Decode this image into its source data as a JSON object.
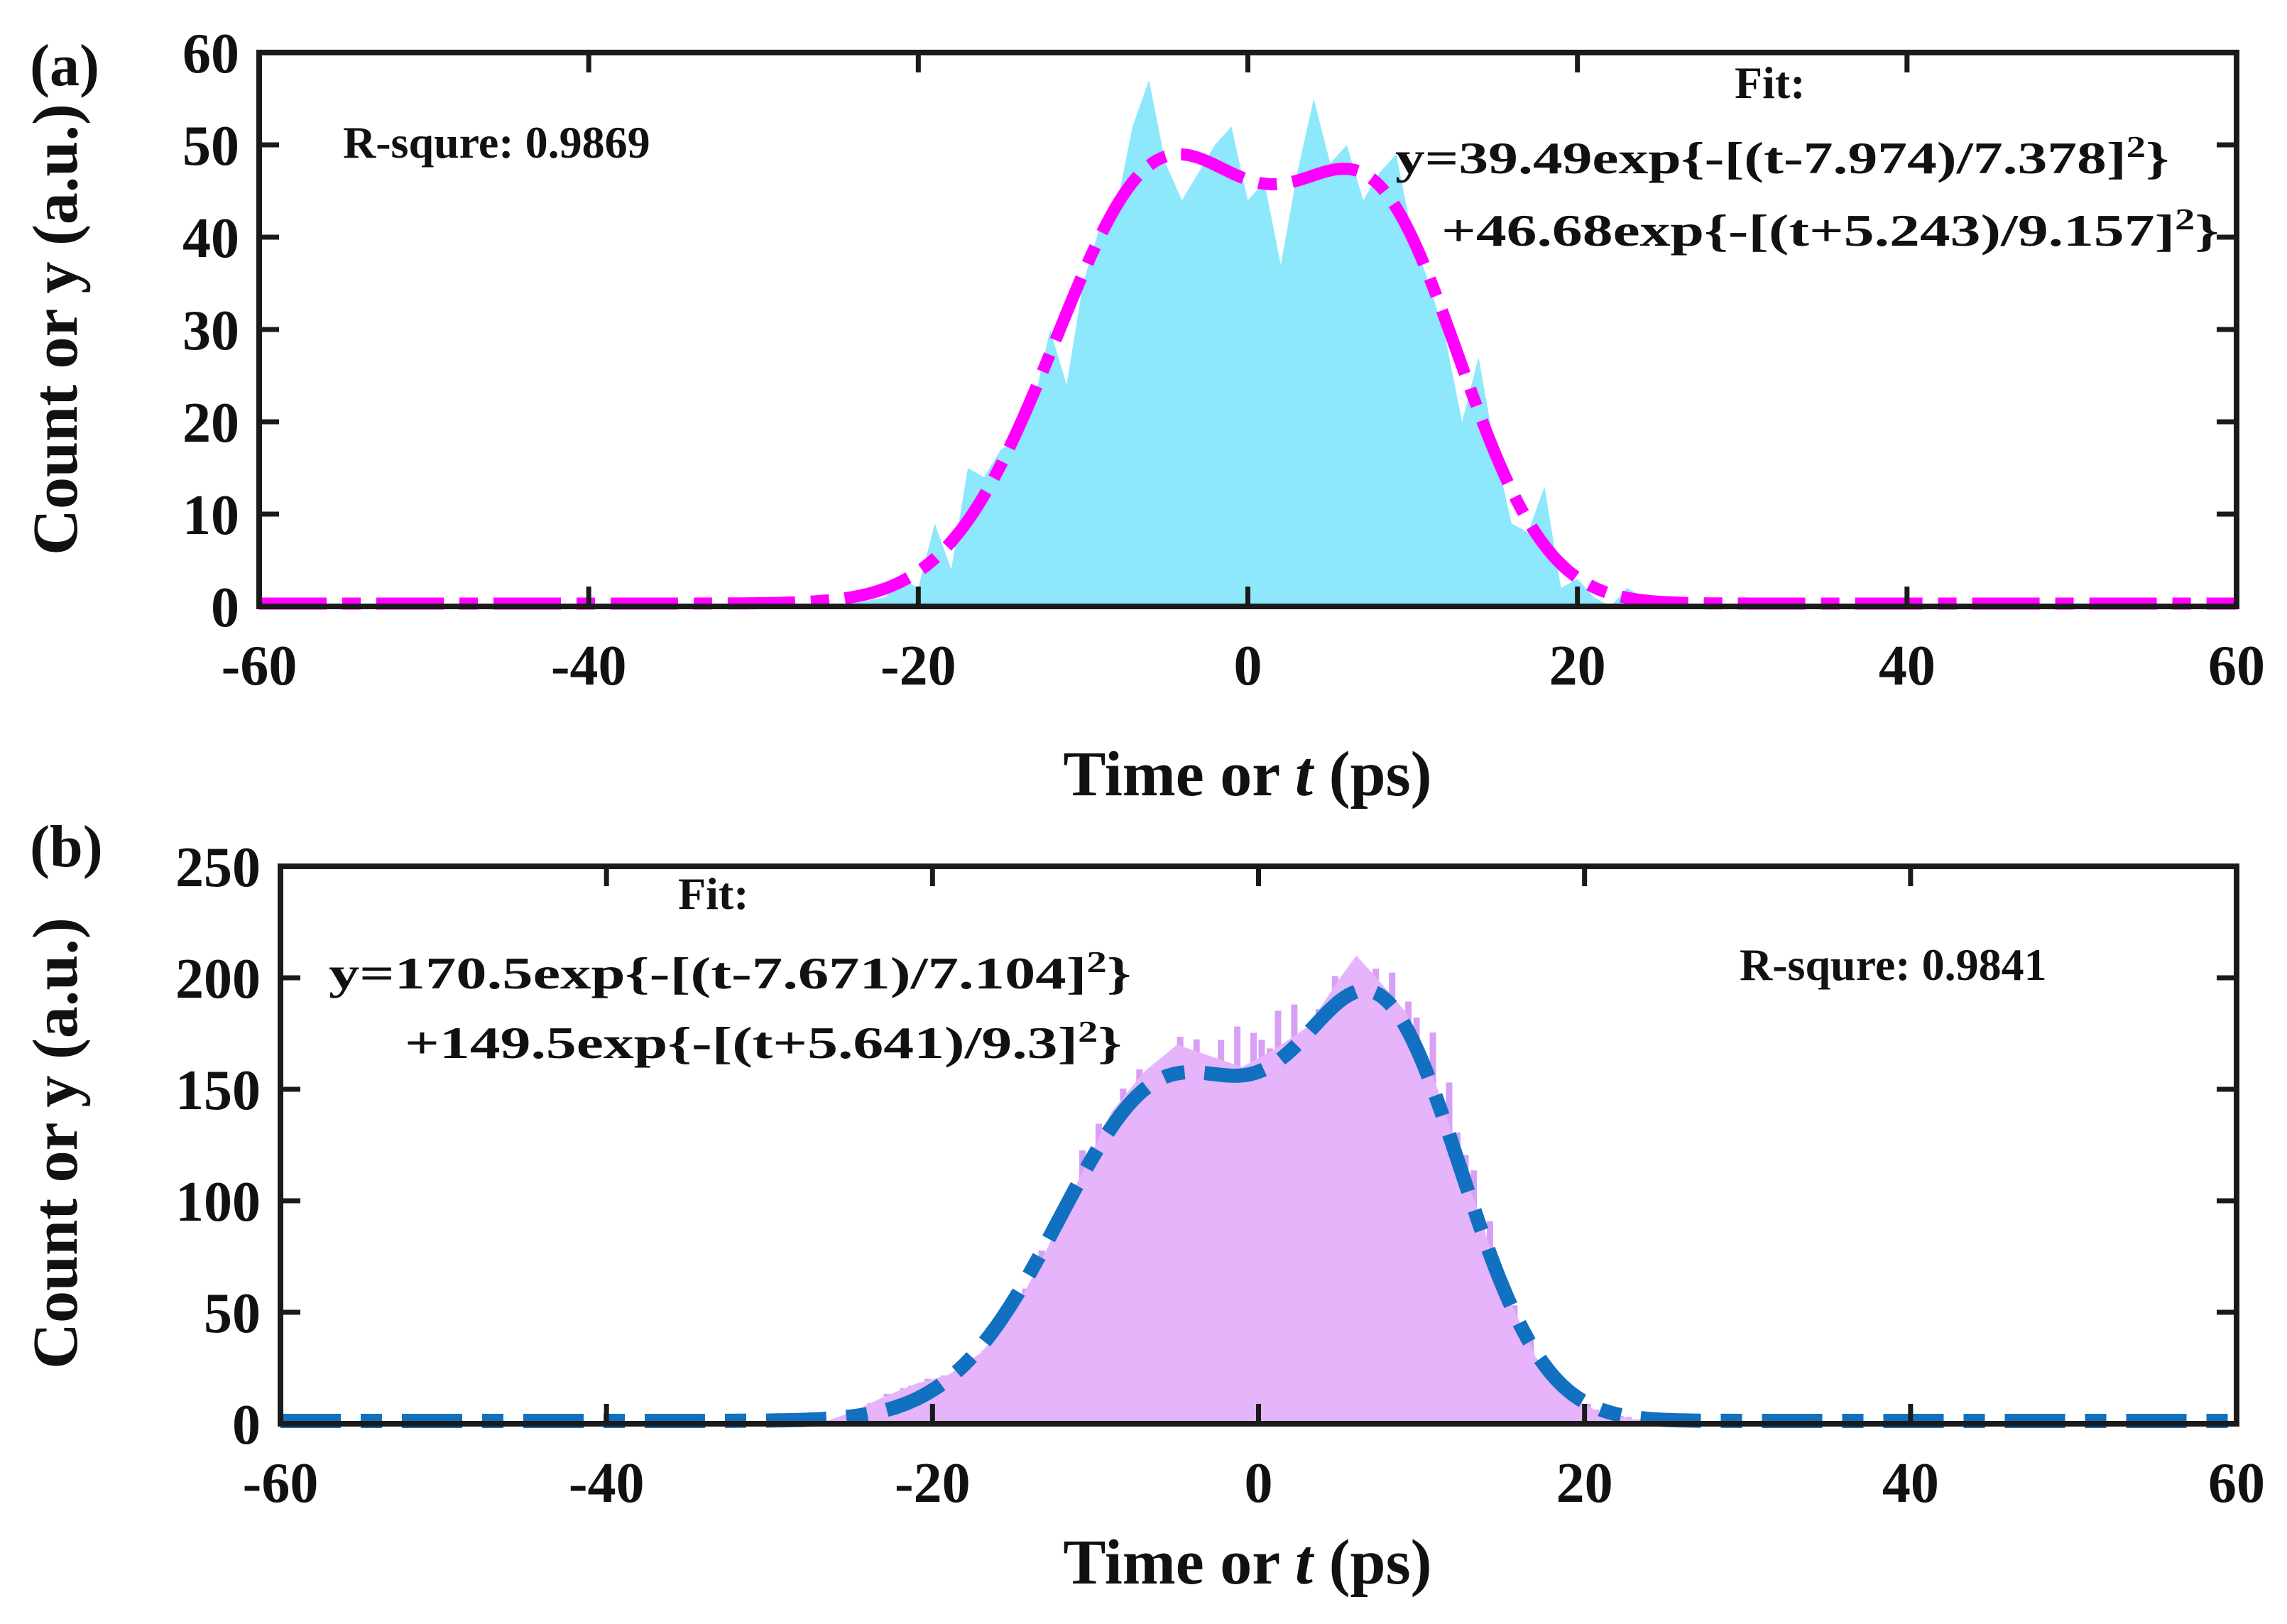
{
  "colors": {
    "axis": "#1a1a1a",
    "text": "#111111",
    "a_fill": "#8ee8fb",
    "a_fit": "#ff00ff",
    "b_fill": "#e5b4fb",
    "b_fit": "#1170c0"
  },
  "chart_data": [
    {
      "panel": "(a)",
      "type": "area",
      "xlabel_main": "Time or ",
      "xlabel_var": "t",
      "xlabel_unit": " (ps)",
      "ylabel": "Count or y (a.u.)",
      "xlim": [
        -60,
        60
      ],
      "ylim": [
        0,
        60
      ],
      "xticks": [
        -60,
        -40,
        -20,
        0,
        20,
        40,
        60
      ],
      "yticks": [
        0,
        10,
        20,
        30,
        40,
        50,
        60
      ],
      "r_square": "R-squre: 0.9869",
      "fit_title": "Fit:",
      "fit_line1": "y=39.49exp{-[(t-7.974)/7.378]",
      "fit_line1_sup": "2",
      "fit_line1_end": "}",
      "fit_line2": "+46.68exp{-[(t+5.243)/9.157]",
      "fit_line2_sup": "2",
      "fit_line2_end": "}",
      "fit_params": [
        {
          "amplitude": 39.49,
          "center": 7.974,
          "width": 7.378
        },
        {
          "amplitude": 46.68,
          "center": -5.243,
          "width": 9.157
        }
      ],
      "series": [
        {
          "name": "Count",
          "style": "filled area",
          "x": [
            -60,
            -25,
            -22,
            -21,
            -20,
            -19,
            -18,
            -17,
            -16,
            -15,
            -14,
            -13,
            -12,
            -11,
            -10,
            -9,
            -8,
            -7,
            -6,
            -5,
            -4,
            -3,
            -2,
            -1,
            0,
            1,
            2,
            3,
            4,
            5,
            6,
            7,
            8,
            9,
            10,
            11,
            12,
            13,
            14,
            15,
            16,
            17,
            18,
            19,
            20,
            21,
            22,
            23,
            24,
            25,
            60
          ],
          "values": [
            0,
            0,
            1,
            3,
            2,
            9,
            4,
            15,
            14,
            17,
            18,
            22,
            30,
            24,
            35,
            41,
            43,
            52,
            57,
            48,
            44,
            47,
            50,
            52,
            44,
            46,
            37,
            47,
            55,
            48,
            50,
            44,
            47,
            49,
            40,
            35,
            29,
            20,
            27,
            17,
            9,
            8,
            13,
            2,
            3,
            1,
            0,
            2,
            1,
            0,
            0
          ]
        },
        {
          "name": "Fit",
          "style": "dashed line",
          "x_range": [
            -60,
            60
          ]
        }
      ]
    },
    {
      "panel": "(b)",
      "type": "area",
      "xlabel_main": "Time or ",
      "xlabel_var": "t",
      "xlabel_unit": " (ps)",
      "ylabel": "Count or y (a.u.)",
      "xlim": [
        -60,
        60
      ],
      "ylim": [
        0,
        250
      ],
      "xticks": [
        -60,
        -40,
        -20,
        0,
        20,
        40,
        60
      ],
      "yticks": [
        0,
        50,
        100,
        150,
        200,
        250
      ],
      "r_square": "R-squre: 0.9841",
      "fit_title": "Fit:",
      "fit_line1": "y=170.5exp{-[(t-7.671)/7.104]",
      "fit_line1_sup": "2",
      "fit_line1_end": "}",
      "fit_line2": "+149.5exp{-[(t+5.641)/9.3]",
      "fit_line2_sup": "2",
      "fit_line2_end": "}",
      "fit_params": [
        {
          "amplitude": 170.5,
          "center": 7.671,
          "width": 7.104
        },
        {
          "amplitude": 149.5,
          "center": -5.641,
          "width": 9.3
        }
      ],
      "series": [
        {
          "name": "Count",
          "style": "filled bars",
          "x": [
            -60,
            -27,
            -25,
            -23,
            -21,
            -19,
            -17,
            -15,
            -13,
            -11,
            -9,
            -7,
            -5,
            -3,
            -1,
            1,
            3,
            5,
            6,
            7,
            9,
            11,
            13,
            15,
            17,
            19,
            21,
            23,
            25,
            60
          ],
          "values": [
            0,
            0,
            5,
            12,
            18,
            22,
            32,
            50,
            78,
            110,
            140,
            158,
            170,
            165,
            160,
            168,
            178,
            200,
            210,
            202,
            185,
            150,
            105,
            62,
            30,
            12,
            5,
            2,
            0,
            0
          ]
        },
        {
          "name": "Fit",
          "style": "dashed line",
          "x_range": [
            -60,
            60
          ]
        }
      ]
    }
  ]
}
